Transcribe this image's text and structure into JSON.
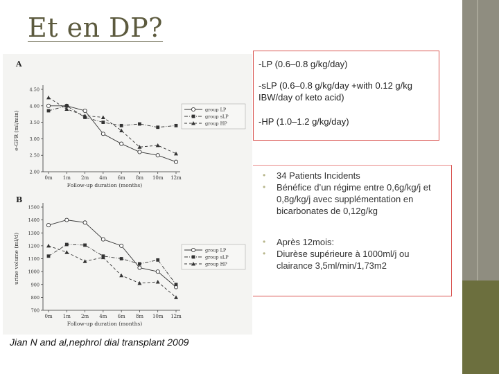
{
  "title": "Et en DP?",
  "legend_entries": [
    "group LP",
    "group sLP",
    "group HP"
  ],
  "box_a": {
    "line1": "-LP (0.6–0.8 g/kg/day)",
    "line2": "-sLP (0.6–0.8 g/kg/day +with 0.12 g/kg IBW/day of keto acid)",
    "line3": "-HP (1.0–1.2 g/kg/day)"
  },
  "bullets_group1": [
    "34 Patients Incidents",
    "Bénéfice d’un régime entre 0,6g/kg/j et 0,8g/kg/j avec supplémentation en bicarbonates de 0,12g/kg"
  ],
  "bullets_group2": [
    "Après 12mois:",
    "Diurèse supérieure à 1000ml/j ou clairance 3,5ml/min/1,73m2"
  ],
  "bullet_symbol": "•",
  "citation": "Jian N and al,nephrol dial transplant 2009",
  "colors": {
    "accent": "#d9534f",
    "title": "#5c5a3e",
    "bar_top": "#8f8d80",
    "bar_bottom": "#6c6f3e"
  },
  "chart_data": [
    {
      "type": "line",
      "panel_label": "A",
      "ylabel": "e-GFR (ml/min)",
      "xlabel": "Follow-up duration (months)",
      "categories": [
        "0m",
        "1m",
        "2m",
        "4m",
        "6m",
        "8m",
        "10m",
        "12m"
      ],
      "ylim": [
        2.0,
        4.5
      ],
      "yticks": [
        "2.00",
        "2.50",
        "3.00",
        "3.50",
        "4.00",
        "4.50"
      ],
      "series": [
        {
          "name": "group LP",
          "marker": "circle",
          "dash": "solid",
          "values": [
            4.0,
            4.0,
            3.85,
            3.15,
            2.85,
            2.6,
            2.5,
            2.3
          ]
        },
        {
          "name": "group sLP",
          "marker": "square",
          "dash": "dashdot",
          "values": [
            3.85,
            4.0,
            3.65,
            3.5,
            3.4,
            3.45,
            3.35,
            3.4
          ]
        },
        {
          "name": "group HP",
          "marker": "triangle",
          "dash": "dashed",
          "values": [
            4.25,
            3.9,
            3.7,
            3.65,
            3.25,
            2.75,
            2.8,
            2.55
          ]
        }
      ]
    },
    {
      "type": "line",
      "panel_label": "B",
      "ylabel": "urine volume (ml/d)",
      "xlabel": "Follow-up duration (months)",
      "categories": [
        "0m",
        "1m",
        "2m",
        "4m",
        "6m",
        "8m",
        "10m",
        "12m"
      ],
      "ylim": [
        700,
        1500
      ],
      "yticks": [
        "700",
        "800",
        "900",
        "1000",
        "1100",
        "1200",
        "1300",
        "1400",
        "1500"
      ],
      "series": [
        {
          "name": "group LP",
          "marker": "circle",
          "dash": "solid",
          "values": [
            1360,
            1400,
            1380,
            1250,
            1200,
            1030,
            1000,
            880
          ]
        },
        {
          "name": "group sLP",
          "marker": "square",
          "dash": "dashdot",
          "values": [
            1120,
            1210,
            1205,
            1120,
            1100,
            1060,
            1090,
            900
          ]
        },
        {
          "name": "group HP",
          "marker": "triangle",
          "dash": "dashed",
          "values": [
            1200,
            1150,
            1080,
            1110,
            970,
            910,
            920,
            800
          ]
        }
      ]
    }
  ]
}
